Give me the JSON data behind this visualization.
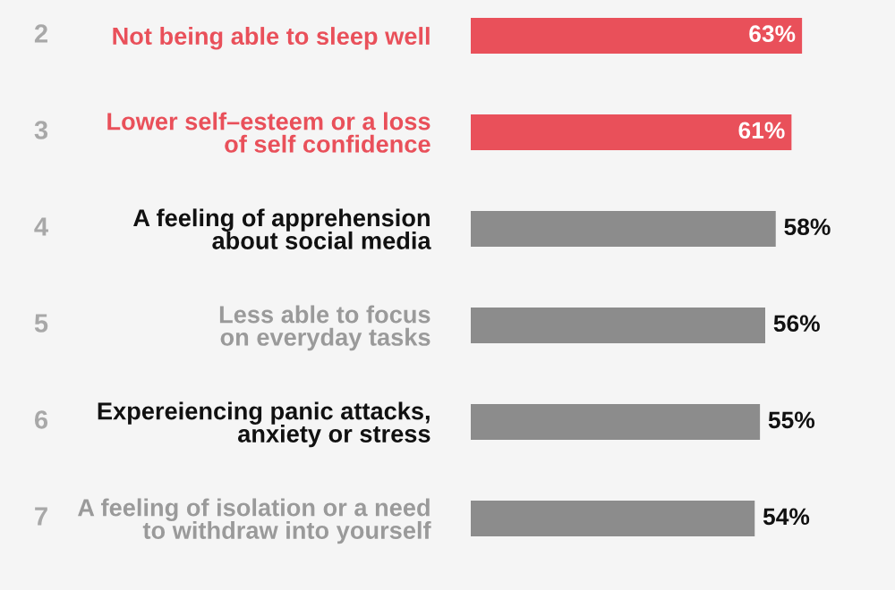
{
  "chart_data": {
    "type": "bar",
    "orientation": "horizontal",
    "categories": [
      "Not being able to sleep well",
      "Lower self–esteem or a loss\nof self confidence",
      "A feeling of apprehension\nabout social media",
      "Less able to focus\non everyday tasks",
      "Expereiencing panic attacks,\nanxiety or stress",
      "A feeling of isolation or a need\nto withdraw into yourself"
    ],
    "values": [
      63,
      61,
      58,
      56,
      55,
      54
    ],
    "colors": [
      "#e9505a",
      "#e9505a",
      "#8c8c8c",
      "#8c8c8c",
      "#8c8c8c",
      "#8c8c8c"
    ],
    "value_labels": [
      "63%",
      "61%",
      "58%",
      "56%",
      "55%",
      "54%"
    ],
    "annotations": [
      "2",
      "3",
      "4",
      "5",
      "6",
      "7"
    ],
    "xlim": [
      0,
      80
    ],
    "tick_labels": "y"
  }
}
